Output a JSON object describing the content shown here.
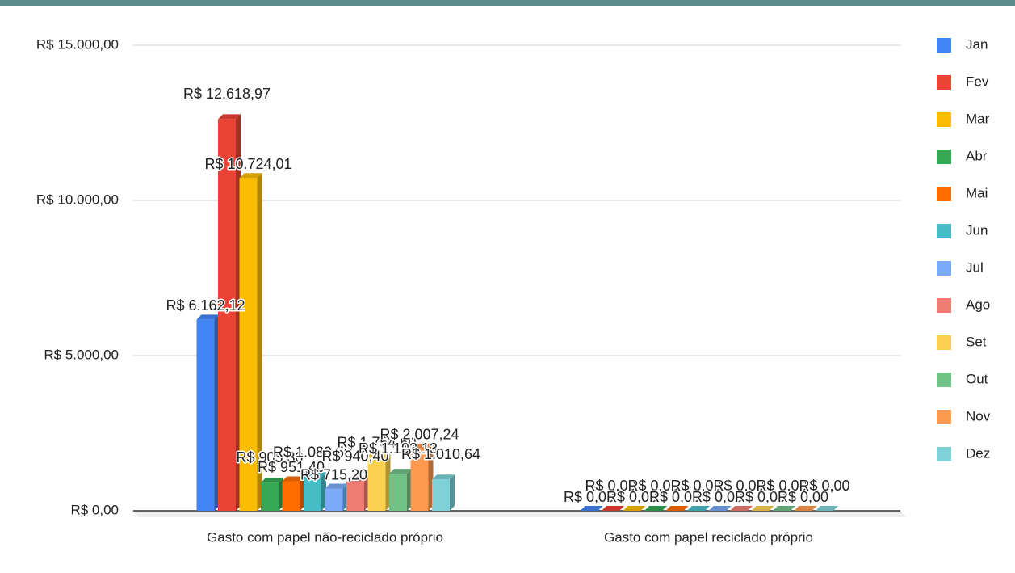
{
  "chart_data": {
    "type": "bar3d",
    "categories": [
      "Gasto com papel não-reciclado próprio",
      "Gasto com papel reciclado próprio"
    ],
    "ylim": [
      0,
      15000
    ],
    "yticks": [
      {
        "value": 0,
        "label": "R$ 0,00"
      },
      {
        "value": 5000,
        "label": "R$ 5.000,00"
      },
      {
        "value": 10000,
        "label": "R$ 10.000,00"
      },
      {
        "value": 15000,
        "label": "R$ 15.000,00"
      }
    ],
    "grid": true,
    "legend": "right",
    "series": [
      {
        "name": "Jan",
        "color": "#4285f4",
        "values": [
          6162.12,
          0
        ],
        "value_labels": [
          "R$ 6.162,12",
          "R$ 0,00"
        ]
      },
      {
        "name": "Fev",
        "color": "#ea4335",
        "values": [
          12618.97,
          0
        ],
        "value_labels": [
          "R$ 12.618,97",
          "R$ 0,00"
        ]
      },
      {
        "name": "Mar",
        "color": "#fbbc04",
        "values": [
          10724.01,
          0
        ],
        "value_labels": [
          "R$ 10.724,01",
          "R$ 0,00"
        ]
      },
      {
        "name": "Abr",
        "color": "#34a853",
        "values": [
          905.3,
          0
        ],
        "value_labels": [
          "R$ 905,30",
          "R$ 0,00"
        ]
      },
      {
        "name": "Mai",
        "color": "#ff6d01",
        "values": [
          951.4,
          0
        ],
        "value_labels": [
          "R$ 951,40",
          "R$ 0,00"
        ]
      },
      {
        "name": "Jun",
        "color": "#46bdc6",
        "values": [
          1080.5,
          0
        ],
        "value_labels": [
          "R$ 1.080,50",
          "R$ 0,00"
        ]
      },
      {
        "name": "Jul",
        "color": "#7baaf7",
        "values": [
          715.2,
          0
        ],
        "value_labels": [
          "R$ 715,20",
          "R$ 0,00"
        ]
      },
      {
        "name": "Ago",
        "color": "#f07b72",
        "values": [
          940.4,
          0
        ],
        "value_labels": [
          "R$ 940,40",
          "R$ 0,00"
        ]
      },
      {
        "name": "Set",
        "color": "#fcd04f",
        "values": [
          1754.6,
          0
        ],
        "value_labels": [
          "R$ 1.754,60",
          "R$ 0,00"
        ]
      },
      {
        "name": "Out",
        "color": "#71c287",
        "values": [
          1193.13,
          0
        ],
        "value_labels": [
          "R$ 1.193,13",
          "R$ 0,00"
        ]
      },
      {
        "name": "Nov",
        "color": "#ff994d",
        "values": [
          2007.24,
          0
        ],
        "value_labels": [
          "R$ 2.007,24",
          "R$ 0,00"
        ]
      },
      {
        "name": "Dez",
        "color": "#7ed1d7",
        "values": [
          1010.64,
          0
        ],
        "value_labels": [
          "R$ 1.010,64",
          "R$ 0,00"
        ]
      }
    ]
  }
}
